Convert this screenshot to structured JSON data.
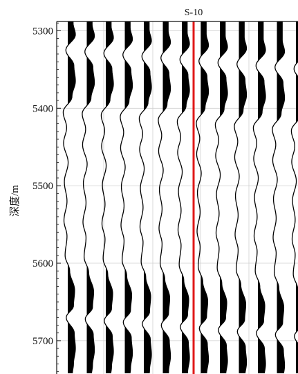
{
  "chart_data": {
    "type": "seismic-wiggle",
    "title": "",
    "well_label": "S-10",
    "xlabel": "",
    "ylabel": "深度/m",
    "ylim": [
      5288,
      5743
    ],
    "y_ticks": [
      5300,
      5400,
      5500,
      5600,
      5700
    ],
    "grid": true,
    "trace_count": 13,
    "well_trace_index": 7,
    "colors": {
      "trace": "#000000",
      "well_line": "#e01818",
      "grid": "#cfcfcf"
    },
    "traces": [
      {
        "depth_shift": 0,
        "amplitude": 1.0
      },
      {
        "depth_shift": 2,
        "amplitude": 1.0
      },
      {
        "depth_shift": 4,
        "amplitude": 1.0
      },
      {
        "depth_shift": 6,
        "amplitude": 1.0
      },
      {
        "depth_shift": 8,
        "amplitude": 1.0
      },
      {
        "depth_shift": 10,
        "amplitude": 1.0
      },
      {
        "depth_shift": 12,
        "amplitude": 1.0
      },
      {
        "depth_shift": 14,
        "amplitude": 1.0
      },
      {
        "depth_shift": 16,
        "amplitude": 1.0
      },
      {
        "depth_shift": 18,
        "amplitude": 1.0
      },
      {
        "depth_shift": 20,
        "amplitude": 1.0
      },
      {
        "depth_shift": 22,
        "amplitude": 1.0
      },
      {
        "depth_shift": 24,
        "amplitude": 1.0
      }
    ],
    "wavelet": [
      {
        "depth": 5290,
        "amp": 0.7
      },
      {
        "depth": 5305,
        "amp": 1.0
      },
      {
        "depth": 5325,
        "amp": -0.25
      },
      {
        "depth": 5345,
        "amp": 0.8
      },
      {
        "depth": 5365,
        "amp": 1.0
      },
      {
        "depth": 5385,
        "amp": 0.55
      },
      {
        "depth": 5405,
        "amp": -0.6
      },
      {
        "depth": 5425,
        "amp": -0.15
      },
      {
        "depth": 5445,
        "amp": -0.55
      },
      {
        "depth": 5470,
        "amp": 0.05
      },
      {
        "depth": 5495,
        "amp": -0.45
      },
      {
        "depth": 5520,
        "amp": -0.1
      },
      {
        "depth": 5545,
        "amp": -0.5
      },
      {
        "depth": 5565,
        "amp": -0.1
      },
      {
        "depth": 5590,
        "amp": -0.35
      },
      {
        "depth": 5610,
        "amp": 0.25
      },
      {
        "depth": 5635,
        "amp": 0.9
      },
      {
        "depth": 5655,
        "amp": 0.75
      },
      {
        "depth": 5670,
        "amp": -0.2
      },
      {
        "depth": 5690,
        "amp": 0.85
      },
      {
        "depth": 5710,
        "amp": 1.0
      },
      {
        "depth": 5730,
        "amp": 0.75
      },
      {
        "depth": 5743,
        "amp": 0.6
      }
    ]
  }
}
